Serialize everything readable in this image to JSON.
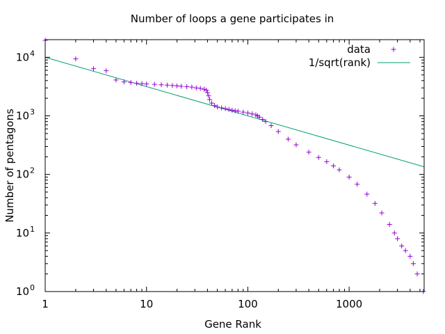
{
  "chart_data": {
    "type": "scatter",
    "title": "Number of loops a gene participates in",
    "xlabel": "Gene Rank",
    "ylabel": "Number of pentagons",
    "xscale": "log",
    "yscale": "log",
    "xlim": [
      1,
      5500
    ],
    "ylim": [
      1,
      20000
    ],
    "x_ticks": [
      {
        "value": 1,
        "label": "1"
      },
      {
        "value": 10,
        "label": "10"
      },
      {
        "value": 100,
        "label": "100"
      },
      {
        "value": 1000,
        "label": "1000"
      }
    ],
    "y_ticks": [
      {
        "value": 1,
        "base": "10",
        "exp": "0"
      },
      {
        "value": 10,
        "base": "10",
        "exp": "1"
      },
      {
        "value": 100,
        "base": "10",
        "exp": "2"
      },
      {
        "value": 1000,
        "base": "10",
        "exp": "3"
      },
      {
        "value": 10000,
        "base": "10",
        "exp": "4"
      }
    ],
    "grid": false,
    "legend_position": "top-right",
    "series": [
      {
        "name": "data",
        "kind": "points",
        "marker": "+",
        "color": "#9400d3",
        "points": [
          [
            1,
            19500
          ],
          [
            2,
            9400
          ],
          [
            3,
            6400
          ],
          [
            4,
            5900
          ],
          [
            5,
            4100
          ],
          [
            6,
            3800
          ],
          [
            7,
            3700
          ],
          [
            8,
            3600
          ],
          [
            9,
            3550
          ],
          [
            10,
            3500
          ],
          [
            12,
            3450
          ],
          [
            14,
            3400
          ],
          [
            16,
            3350
          ],
          [
            18,
            3300
          ],
          [
            20,
            3250
          ],
          [
            22,
            3200
          ],
          [
            25,
            3150
          ],
          [
            28,
            3100
          ],
          [
            31,
            3000
          ],
          [
            34,
            2950
          ],
          [
            37,
            2850
          ],
          [
            39,
            2750
          ],
          [
            40,
            2500
          ],
          [
            41,
            2200
          ],
          [
            42,
            1900
          ],
          [
            44,
            1650
          ],
          [
            47,
            1500
          ],
          [
            50,
            1420
          ],
          [
            55,
            1370
          ],
          [
            60,
            1330
          ],
          [
            65,
            1290
          ],
          [
            70,
            1250
          ],
          [
            75,
            1220
          ],
          [
            80,
            1200
          ],
          [
            90,
            1160
          ],
          [
            100,
            1120
          ],
          [
            110,
            1080
          ],
          [
            120,
            1040
          ],
          [
            125,
            1000
          ],
          [
            130,
            950
          ],
          [
            140,
            870
          ],
          [
            150,
            800
          ],
          [
            170,
            680
          ],
          [
            200,
            540
          ],
          [
            250,
            400
          ],
          [
            300,
            320
          ],
          [
            400,
            240
          ],
          [
            500,
            195
          ],
          [
            600,
            165
          ],
          [
            700,
            140
          ],
          [
            800,
            120
          ],
          [
            1000,
            90
          ],
          [
            1200,
            68
          ],
          [
            1500,
            46
          ],
          [
            1800,
            32
          ],
          [
            2100,
            22
          ],
          [
            2500,
            14
          ],
          [
            2800,
            10
          ],
          [
            3000,
            8
          ],
          [
            3300,
            6
          ],
          [
            3600,
            5
          ],
          [
            4000,
            4
          ],
          [
            4300,
            3
          ],
          [
            4700,
            2
          ],
          [
            5400,
            1
          ]
        ]
      },
      {
        "name": "1/sqrt(rank)",
        "kind": "line",
        "color": "#009e73",
        "formula_amplitude": 10000
      }
    ]
  }
}
